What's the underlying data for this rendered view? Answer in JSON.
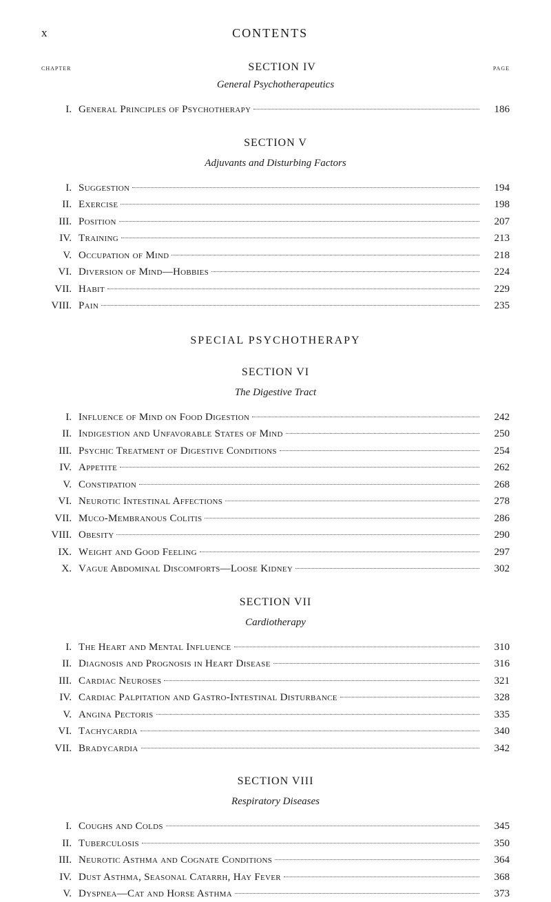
{
  "header": {
    "page_numeral": "x",
    "title": "CONTENTS"
  },
  "labels": {
    "chapter": "chapter",
    "page": "page"
  },
  "section4": {
    "title": "SECTION IV",
    "subtitle": "General Psychotherapeutics",
    "entries": [
      {
        "num": "I.",
        "title": "General Principles of Psychotherapy",
        "page": "186"
      }
    ]
  },
  "section5": {
    "title": "SECTION V",
    "subtitle": "Adjuvants and Disturbing Factors",
    "entries": [
      {
        "num": "I.",
        "title": "Suggestion",
        "page": "194"
      },
      {
        "num": "II.",
        "title": "Exercise",
        "page": "198"
      },
      {
        "num": "III.",
        "title": "Position",
        "page": "207"
      },
      {
        "num": "IV.",
        "title": "Training",
        "page": "213"
      },
      {
        "num": "V.",
        "title": "Occupation of Mind",
        "page": "218"
      },
      {
        "num": "VI.",
        "title": "Diversion of Mind—Hobbies",
        "page": "224"
      },
      {
        "num": "VII.",
        "title": "Habit",
        "page": "229"
      },
      {
        "num": "VIII.",
        "title": "Pain",
        "page": "235"
      }
    ]
  },
  "special": {
    "title": "SPECIAL PSYCHOTHERAPY"
  },
  "section6": {
    "title": "SECTION VI",
    "subtitle": "The Digestive Tract",
    "entries": [
      {
        "num": "I.",
        "title": "Influence of Mind on Food Digestion",
        "page": "242"
      },
      {
        "num": "II.",
        "title": "Indigestion and Unfavorable States of Mind",
        "page": "250"
      },
      {
        "num": "III.",
        "title": "Psychic Treatment of Digestive Conditions",
        "page": "254"
      },
      {
        "num": "IV.",
        "title": "Appetite",
        "page": "262"
      },
      {
        "num": "V.",
        "title": "Constipation",
        "page": "268"
      },
      {
        "num": "VI.",
        "title": "Neurotic Intestinal Affections",
        "page": "278"
      },
      {
        "num": "VII.",
        "title": "Muco-Membranous Colitis",
        "page": "286"
      },
      {
        "num": "VIII.",
        "title": "Obesity",
        "page": "290"
      },
      {
        "num": "IX.",
        "title": "Weight and Good Feeling",
        "page": "297"
      },
      {
        "num": "X.",
        "title": "Vague Abdominal Discomforts—Loose Kidney",
        "page": "302"
      }
    ]
  },
  "section7": {
    "title": "SECTION VII",
    "subtitle": "Cardiotherapy",
    "entries": [
      {
        "num": "I.",
        "title": "The Heart and Mental Influence",
        "page": "310"
      },
      {
        "num": "II.",
        "title": "Diagnosis and Prognosis in Heart Disease",
        "page": "316"
      },
      {
        "num": "III.",
        "title": "Cardiac Neuroses",
        "page": "321"
      },
      {
        "num": "IV.",
        "title": "Cardiac Palpitation and Gastro-Intestinal Disturbance",
        "page": "328"
      },
      {
        "num": "V.",
        "title": "Angina Pectoris",
        "page": "335"
      },
      {
        "num": "VI.",
        "title": "Tachycardia",
        "page": "340"
      },
      {
        "num": "VII.",
        "title": "Bradycardia",
        "page": "342"
      }
    ]
  },
  "section8": {
    "title": "SECTION VIII",
    "subtitle": "Respiratory Diseases",
    "entries": [
      {
        "num": "I.",
        "title": "Coughs and Colds",
        "page": "345"
      },
      {
        "num": "II.",
        "title": "Tuberculosis",
        "page": "350"
      },
      {
        "num": "III.",
        "title": "Neurotic Asthma and Cognate Conditions",
        "page": "364"
      },
      {
        "num": "IV.",
        "title": "Dust Asthma, Seasonal Catarrh, Hay Fever",
        "page": "368"
      },
      {
        "num": "V.",
        "title": "Dyspnea—Cat and Horse Asthma",
        "page": "373"
      }
    ]
  }
}
